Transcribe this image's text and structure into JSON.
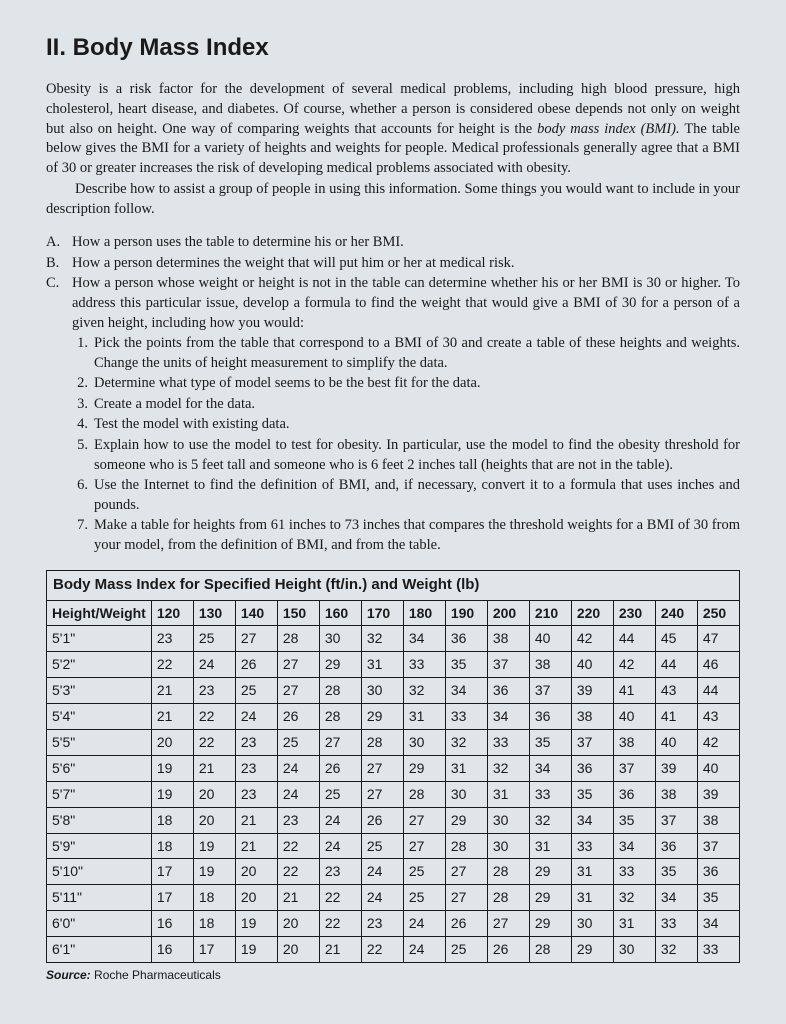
{
  "title": "II. Body Mass Index",
  "intro_part1": "Obesity is a risk factor for the development of several medical problems, including high blood pressure, high cholesterol, heart disease, and diabetes. Of course, whether a person is considered obese depends not only on weight but also on height. One way of comparing weights that accounts for height is the ",
  "intro_italic": "body mass index (BMI).",
  "intro_part2": " The table below gives the BMI for a variety of heights and weights for people. Medical professionals generally agree that a BMI of 30 or greater increases the risk of developing medical problems associated with obesity.",
  "describe": "Describe how to assist a group of people in using this information. Some things you would want to include in your description follow.",
  "questions": [
    {
      "marker": "A.",
      "text": "How a person uses the table to determine his or her BMI."
    },
    {
      "marker": "B.",
      "text": "How a person determines the weight that will put him or her at medical risk."
    },
    {
      "marker": "C.",
      "text": "How a person whose weight or height is not in the table can determine whether his or her BMI is 30 or higher. To address this particular issue, develop a formula to find the weight that would give a BMI of 30 for a person of a given height, including how you would:"
    }
  ],
  "sub_items": [
    {
      "marker": "1.",
      "text": "Pick the points from the table that correspond to a BMI of 30 and create a table of these heights and weights. Change the units of height measurement to simplify the data."
    },
    {
      "marker": "2.",
      "text": "Determine what type of model seems to be the best fit for the data."
    },
    {
      "marker": "3.",
      "text": "Create a model for the data."
    },
    {
      "marker": "4.",
      "text": "Test the model with existing data."
    },
    {
      "marker": "5.",
      "text": "Explain how to use the model to test for obesity. In particular, use the model to find the obesity threshold for someone who is 5 feet tall and someone who is 6 feet 2 inches tall (heights that are not in the table)."
    },
    {
      "marker": "6.",
      "text": "Use the Internet to find the definition of BMI, and, if necessary, convert it to a formula that uses inches and pounds."
    },
    {
      "marker": "7.",
      "text": "Make a table for heights from 61 inches to 73 inches that compares the threshold weights for a BMI of 30 from your model, from the definition of BMI, and from the table."
    }
  ],
  "table": {
    "caption": "Body Mass Index for Specified Height (ft/in.) and Weight (lb)",
    "header_first": "Height/Weight",
    "weights": [
      "120",
      "130",
      "140",
      "150",
      "160",
      "170",
      "180",
      "190",
      "200",
      "210",
      "220",
      "230",
      "240",
      "250"
    ],
    "rows": [
      {
        "h": "5'1\"",
        "v": [
          "23",
          "25",
          "27",
          "28",
          "30",
          "32",
          "34",
          "36",
          "38",
          "40",
          "42",
          "44",
          "45",
          "47"
        ]
      },
      {
        "h": "5'2\"",
        "v": [
          "22",
          "24",
          "26",
          "27",
          "29",
          "31",
          "33",
          "35",
          "37",
          "38",
          "40",
          "42",
          "44",
          "46"
        ]
      },
      {
        "h": "5'3\"",
        "v": [
          "21",
          "23",
          "25",
          "27",
          "28",
          "30",
          "32",
          "34",
          "36",
          "37",
          "39",
          "41",
          "43",
          "44"
        ]
      },
      {
        "h": "5'4\"",
        "v": [
          "21",
          "22",
          "24",
          "26",
          "28",
          "29",
          "31",
          "33",
          "34",
          "36",
          "38",
          "40",
          "41",
          "43"
        ]
      },
      {
        "h": "5'5\"",
        "v": [
          "20",
          "22",
          "23",
          "25",
          "27",
          "28",
          "30",
          "32",
          "33",
          "35",
          "37",
          "38",
          "40",
          "42"
        ]
      },
      {
        "h": "5'6\"",
        "v": [
          "19",
          "21",
          "23",
          "24",
          "26",
          "27",
          "29",
          "31",
          "32",
          "34",
          "36",
          "37",
          "39",
          "40"
        ]
      },
      {
        "h": "5'7\"",
        "v": [
          "19",
          "20",
          "23",
          "24",
          "25",
          "27",
          "28",
          "30",
          "31",
          "33",
          "35",
          "36",
          "38",
          "39"
        ]
      },
      {
        "h": "5'8\"",
        "v": [
          "18",
          "20",
          "21",
          "23",
          "24",
          "26",
          "27",
          "29",
          "30",
          "32",
          "34",
          "35",
          "37",
          "38"
        ]
      },
      {
        "h": "5'9\"",
        "v": [
          "18",
          "19",
          "21",
          "22",
          "24",
          "25",
          "27",
          "28",
          "30",
          "31",
          "33",
          "34",
          "36",
          "37"
        ]
      },
      {
        "h": "5'10\"",
        "v": [
          "17",
          "19",
          "20",
          "22",
          "23",
          "24",
          "25",
          "27",
          "28",
          "29",
          "31",
          "33",
          "35",
          "36"
        ]
      },
      {
        "h": "5'11\"",
        "v": [
          "17",
          "18",
          "20",
          "21",
          "22",
          "24",
          "25",
          "27",
          "28",
          "29",
          "31",
          "32",
          "34",
          "35"
        ]
      },
      {
        "h": "6'0\"",
        "v": [
          "16",
          "18",
          "19",
          "20",
          "22",
          "23",
          "24",
          "26",
          "27",
          "29",
          "30",
          "31",
          "33",
          "34"
        ]
      },
      {
        "h": "6'1\"",
        "v": [
          "16",
          "17",
          "19",
          "20",
          "21",
          "22",
          "24",
          "25",
          "26",
          "28",
          "29",
          "30",
          "32",
          "33"
        ]
      }
    ],
    "source_label": "Source:",
    "source_text": " Roche Pharmaceuticals"
  },
  "colors": {
    "background": "#dfe5e9",
    "text": "#1a1a1a",
    "border": "#1a1a1a"
  }
}
